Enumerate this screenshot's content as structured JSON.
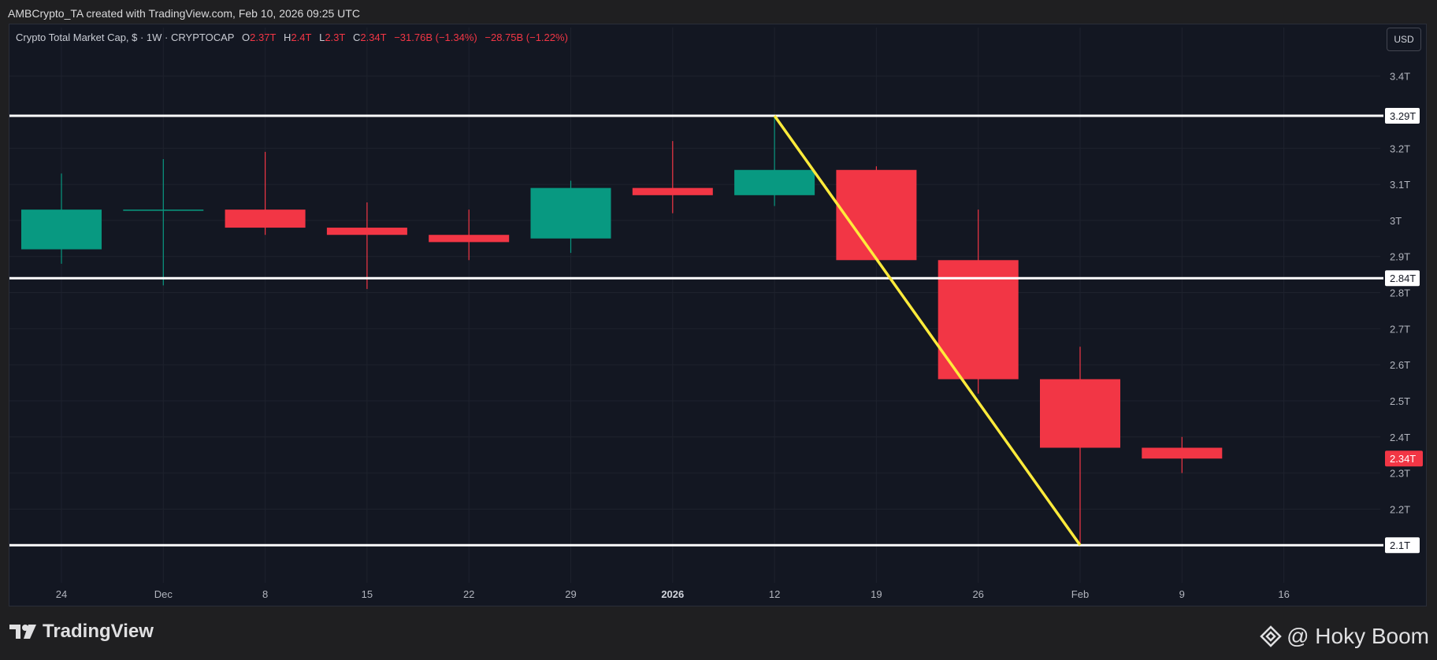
{
  "header": {
    "attribution": "AMBCrypto_TA created with TradingView.com, Feb 10, 2026 09:25 UTC"
  },
  "legend": {
    "symbol": "Crypto Total Market Cap, $ · 1W · CRYPTOCAP",
    "open_label": "O",
    "open": "2.37T",
    "high_label": "H",
    "high": "2.4T",
    "low_label": "L",
    "low": "2.3T",
    "close_label": "C",
    "close": "2.34T",
    "change": "−31.76B (−1.34%)",
    "change2": "−28.75B (−1.22%)"
  },
  "currency_button": "USD",
  "footer": {
    "brand": "TradingView",
    "watermark": "@ Hoky Boom"
  },
  "colors": {
    "background": "#131722",
    "up": "#089981",
    "down": "#f23645",
    "trendline": "#ffeb3b",
    "level_line": "#ffffff",
    "grid": "#1e222d"
  },
  "chart_data": {
    "type": "candlestick",
    "title": "Crypto Total Market Cap, $ · 1W · CRYPTOCAP",
    "ylim": [
      2.0,
      3.48
    ],
    "y_ticks": [
      {
        "value": 3.4,
        "label": "3.4T"
      },
      {
        "value": 3.2,
        "label": "3.2T"
      },
      {
        "value": 3.1,
        "label": "3.1T"
      },
      {
        "value": 3.0,
        "label": "3T"
      },
      {
        "value": 2.9,
        "label": "2.9T"
      },
      {
        "value": 2.8,
        "label": "2.8T"
      },
      {
        "value": 2.7,
        "label": "2.7T"
      },
      {
        "value": 2.6,
        "label": "2.6T"
      },
      {
        "value": 2.5,
        "label": "2.5T"
      },
      {
        "value": 2.4,
        "label": "2.4T"
      },
      {
        "value": 2.3,
        "label": "2.3T"
      },
      {
        "value": 2.2,
        "label": "2.2T"
      }
    ],
    "x_ticks": [
      "24",
      "Dec",
      "8",
      "15",
      "22",
      "29",
      "2026",
      "12",
      "19",
      "26",
      "Feb",
      "9",
      "16",
      ""
    ],
    "x_ticks_bold": [
      "2026"
    ],
    "candles": [
      {
        "open": 2.92,
        "high": 3.13,
        "low": 2.88,
        "close": 3.03
      },
      {
        "open": 3.03,
        "high": 3.17,
        "low": 2.82,
        "close": 3.03
      },
      {
        "open": 3.03,
        "high": 3.19,
        "low": 2.96,
        "close": 2.98
      },
      {
        "open": 2.98,
        "high": 3.05,
        "low": 2.81,
        "close": 2.96
      },
      {
        "open": 2.96,
        "high": 3.03,
        "low": 2.89,
        "close": 2.94
      },
      {
        "open": 2.95,
        "high": 3.11,
        "low": 2.91,
        "close": 3.09
      },
      {
        "open": 3.09,
        "high": 3.22,
        "low": 3.02,
        "close": 3.07
      },
      {
        "open": 3.07,
        "high": 3.29,
        "low": 3.04,
        "close": 3.14
      },
      {
        "open": 3.14,
        "high": 3.15,
        "low": 2.89,
        "close": 2.89
      },
      {
        "open": 2.89,
        "high": 3.03,
        "low": 2.52,
        "close": 2.56
      },
      {
        "open": 2.56,
        "high": 2.65,
        "low": 2.1,
        "close": 2.37
      },
      {
        "open": 2.37,
        "high": 2.4,
        "low": 2.3,
        "close": 2.34
      }
    ],
    "horizontal_levels": [
      {
        "value": 3.29,
        "label": "3.29T"
      },
      {
        "value": 2.84,
        "label": "2.84T"
      },
      {
        "value": 2.1,
        "label": "2.1T"
      }
    ],
    "current_price": {
      "value": 2.34,
      "label": "2.34T"
    },
    "trendline": {
      "from": {
        "index": 7,
        "value": 3.29
      },
      "to": {
        "index": 10,
        "value": 2.1
      }
    }
  }
}
